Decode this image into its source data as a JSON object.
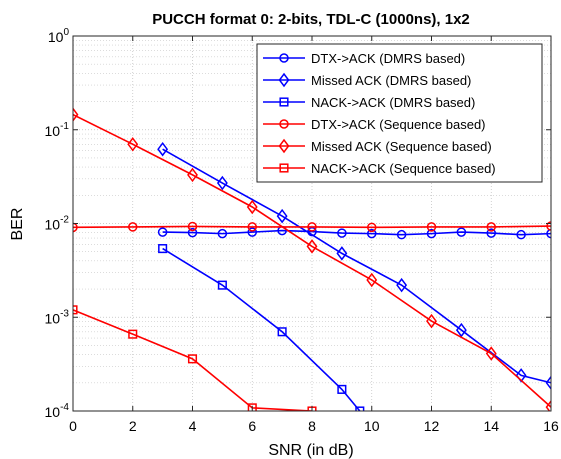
{
  "chart_data": {
    "type": "line",
    "title": "PUCCH format 0: 2-bits, TDL-C (1000ns), 1x2",
    "xlabel": "SNR (in dB)",
    "ylabel": "BER",
    "xlim": [
      0,
      16
    ],
    "ylim": [
      0.0001,
      1
    ],
    "yscale": "log",
    "xticks": [
      "0",
      "2",
      "4",
      "6",
      "8",
      "10",
      "12",
      "14",
      "16"
    ],
    "yticks": [
      {
        "base": "10",
        "exp": "0"
      },
      {
        "base": "10",
        "exp": "-1"
      },
      {
        "base": "10",
        "exp": "-2"
      },
      {
        "base": "10",
        "exp": "-3"
      },
      {
        "base": "10",
        "exp": "-4"
      }
    ],
    "grid": true,
    "minor_grid": true,
    "legend_position": "top-right",
    "series": [
      {
        "name": "DTX->ACK (DMRS based)",
        "color": "#0000ff",
        "marker": "circle",
        "x": [
          3,
          4,
          5,
          6,
          7,
          8,
          9,
          10,
          11,
          12,
          13,
          14,
          15,
          16
        ],
        "y": [
          0.0081,
          0.008,
          0.0078,
          0.0081,
          0.0084,
          0.0082,
          0.0079,
          0.0078,
          0.0076,
          0.0078,
          0.0081,
          0.0079,
          0.0076,
          0.0078
        ]
      },
      {
        "name": "Missed ACK (DMRS based)",
        "color": "#0000ff",
        "marker": "diamond",
        "x": [
          3,
          5,
          7,
          9,
          11,
          13,
          15,
          16
        ],
        "y": [
          0.062,
          0.027,
          0.012,
          0.0048,
          0.0022,
          0.00073,
          0.00024,
          0.0002
        ]
      },
      {
        "name": "NACK->ACK (DMRS based)",
        "color": "#0000ff",
        "marker": "square",
        "x": [
          3,
          5,
          7,
          9,
          9.6
        ],
        "y": [
          0.0054,
          0.0022,
          0.0007,
          0.00017,
          0.0001
        ]
      },
      {
        "name": "DTX->ACK (Sequence based)",
        "color": "#ff0000",
        "marker": "circle",
        "x": [
          0,
          2,
          4,
          6,
          8,
          10,
          12,
          14,
          16
        ],
        "y": [
          0.0091,
          0.0092,
          0.0093,
          0.0092,
          0.0092,
          0.0091,
          0.0092,
          0.0092,
          0.0094
        ]
      },
      {
        "name": "Missed ACK (Sequence based)",
        "color": "#ff0000",
        "marker": "diamond",
        "x": [
          0,
          2,
          4,
          6,
          8,
          10,
          12,
          14,
          16
        ],
        "y": [
          0.145,
          0.07,
          0.033,
          0.015,
          0.0057,
          0.0025,
          0.00091,
          0.00041,
          0.00011
        ]
      },
      {
        "name": "NACK->ACK (Sequence based)",
        "color": "#ff0000",
        "marker": "square",
        "x": [
          0,
          2,
          4,
          6,
          8
        ],
        "y": [
          0.0012,
          0.00066,
          0.00036,
          0.000108,
          0.0001
        ]
      }
    ]
  }
}
